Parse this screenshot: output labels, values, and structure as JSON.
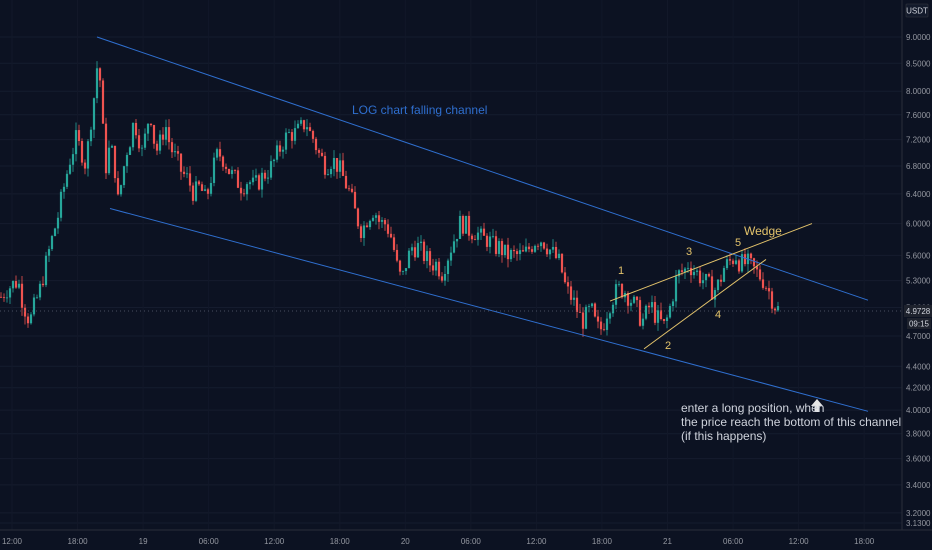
{
  "currency": "USDT",
  "price_label": "4.9728",
  "countdown_label": "09:15",
  "colors": {
    "background": "#0c1222",
    "up": "#26a69a",
    "down": "#ef5350",
    "channel": "#2f6fcf",
    "wedge": "#e3c36b",
    "axis_text": "#9598a1",
    "annotation": "#cfd3dc"
  },
  "annotations": {
    "channel_title": "LOG chart falling channel",
    "wedge_title": "Wedge",
    "note_lines": [
      "enter a long position, when",
      "the price reach the bottom of this channel",
      "(if this happens)"
    ]
  },
  "chart_data": {
    "type": "candlestick",
    "y_scale": "log",
    "y_ticks": [
      "9.0000",
      "8.5000",
      "8.0000",
      "7.6000",
      "7.2000",
      "6.8000",
      "6.4000",
      "6.0000",
      "5.6000",
      "5.3000",
      "5.0000",
      "4.7000",
      "4.4000",
      "4.2000",
      "4.0000",
      "3.8000",
      "3.6000",
      "3.4000",
      "3.2000",
      "3.1300"
    ],
    "x_ticks": [
      "12:00",
      "18:00",
      "19",
      "06:00",
      "12:00",
      "18:00",
      "20",
      "06:00",
      "12:00",
      "18:00",
      "21",
      "06:00",
      "12:00",
      "18:00"
    ],
    "ylim": [
      3.13,
      9.4
    ],
    "price_path": [
      [
        0,
        5.1
      ],
      [
        6,
        5.2
      ],
      [
        12,
        5.25
      ],
      [
        18,
        5.3
      ],
      [
        22,
        5.1
      ],
      [
        26,
        4.95
      ],
      [
        30,
        4.85
      ],
      [
        34,
        5.0
      ],
      [
        40,
        5.2
      ],
      [
        46,
        5.5
      ],
      [
        52,
        5.8
      ],
      [
        58,
        6.1
      ],
      [
        64,
        6.5
      ],
      [
        70,
        6.9
      ],
      [
        76,
        7.2
      ],
      [
        82,
        7.0
      ],
      [
        86,
        6.8
      ],
      [
        90,
        7.4
      ],
      [
        94,
        7.9
      ],
      [
        98,
        8.6
      ],
      [
        100,
        8.2
      ],
      [
        102,
        7.5
      ],
      [
        106,
        6.8
      ],
      [
        110,
        7.1
      ],
      [
        114,
        6.9
      ],
      [
        118,
        6.3
      ],
      [
        122,
        6.6
      ],
      [
        126,
        7.0
      ],
      [
        130,
        7.2
      ],
      [
        134,
        7.5
      ],
      [
        138,
        7.3
      ],
      [
        142,
        7.0
      ],
      [
        146,
        7.3
      ],
      [
        150,
        7.7
      ],
      [
        154,
        7.2
      ],
      [
        158,
        7.0
      ],
      [
        162,
        7.3
      ],
      [
        166,
        7.4
      ],
      [
        170,
        7.1
      ],
      [
        176,
        6.9
      ],
      [
        182,
        6.7
      ],
      [
        188,
        6.6
      ],
      [
        194,
        6.4
      ],
      [
        200,
        6.5
      ],
      [
        206,
        6.3
      ],
      [
        212,
        6.7
      ],
      [
        218,
        7.0
      ],
      [
        224,
        6.9
      ],
      [
        230,
        6.7
      ],
      [
        236,
        6.6
      ],
      [
        242,
        6.5
      ],
      [
        248,
        6.6
      ],
      [
        254,
        6.5
      ],
      [
        260,
        6.6
      ],
      [
        266,
        6.7
      ],
      [
        272,
        6.8
      ],
      [
        278,
        7.0
      ],
      [
        284,
        7.2
      ],
      [
        290,
        7.3
      ],
      [
        296,
        7.3
      ],
      [
        302,
        7.4
      ],
      [
        306,
        7.5
      ],
      [
        310,
        7.3
      ],
      [
        314,
        7.2
      ],
      [
        318,
        7.0
      ],
      [
        322,
        6.9
      ],
      [
        326,
        6.8
      ],
      [
        332,
        6.9
      ],
      [
        338,
        6.8
      ],
      [
        344,
        6.6
      ],
      [
        350,
        6.4
      ],
      [
        356,
        6.1
      ],
      [
        362,
        5.9
      ],
      [
        368,
        6.1
      ],
      [
        374,
        6.2
      ],
      [
        380,
        6.0
      ],
      [
        386,
        6.0
      ],
      [
        392,
        5.8
      ],
      [
        398,
        5.4
      ],
      [
        402,
        5.3
      ],
      [
        406,
        5.5
      ],
      [
        412,
        5.7
      ],
      [
        418,
        5.7
      ],
      [
        424,
        5.6
      ],
      [
        430,
        5.5
      ],
      [
        436,
        5.5
      ],
      [
        442,
        5.4
      ],
      [
        448,
        5.6
      ],
      [
        454,
        5.8
      ],
      [
        460,
        6.0
      ],
      [
        464,
        6.0
      ],
      [
        470,
        5.9
      ],
      [
        476,
        5.9
      ],
      [
        482,
        5.8
      ],
      [
        488,
        5.8
      ],
      [
        494,
        5.7
      ],
      [
        500,
        5.7
      ],
      [
        506,
        5.6
      ],
      [
        512,
        5.6
      ],
      [
        518,
        5.6
      ],
      [
        524,
        5.6
      ],
      [
        530,
        5.7
      ],
      [
        536,
        5.8
      ],
      [
        542,
        5.8
      ],
      [
        548,
        5.7
      ],
      [
        554,
        5.6
      ],
      [
        560,
        5.5
      ],
      [
        566,
        5.2
      ],
      [
        572,
        5.1
      ],
      [
        576,
        5.0
      ],
      [
        580,
        4.9
      ],
      [
        584,
        4.85
      ],
      [
        588,
        4.95
      ],
      [
        592,
        4.95
      ],
      [
        596,
        4.8
      ],
      [
        600,
        4.75
      ],
      [
        604,
        4.85
      ],
      [
        608,
        5.0
      ],
      [
        612,
        5.1
      ],
      [
        618,
        5.2
      ],
      [
        624,
        5.2
      ],
      [
        630,
        5.1
      ],
      [
        636,
        5.0
      ],
      [
        640,
        4.9
      ],
      [
        644,
        4.85
      ],
      [
        648,
        5.0
      ],
      [
        652,
        5.0
      ],
      [
        656,
        4.9
      ],
      [
        660,
        4.85
      ],
      [
        664,
        4.8
      ],
      [
        668,
        4.9
      ],
      [
        672,
        5.1
      ],
      [
        676,
        5.3
      ],
      [
        680,
        5.4
      ],
      [
        684,
        5.4
      ],
      [
        688,
        5.5
      ],
      [
        692,
        5.45
      ],
      [
        696,
        5.4
      ],
      [
        700,
        5.35
      ],
      [
        704,
        5.3
      ],
      [
        708,
        5.25
      ],
      [
        712,
        5.2
      ],
      [
        716,
        5.2
      ],
      [
        720,
        5.3
      ],
      [
        724,
        5.45
      ],
      [
        728,
        5.5
      ],
      [
        732,
        5.55
      ],
      [
        736,
        5.6
      ],
      [
        740,
        5.5
      ],
      [
        744,
        5.5
      ],
      [
        748,
        5.5
      ],
      [
        752,
        5.45
      ],
      [
        756,
        5.4
      ],
      [
        760,
        5.35
      ],
      [
        764,
        5.3
      ],
      [
        768,
        5.2
      ],
      [
        772,
        5.1
      ],
      [
        776,
        5.0
      ],
      [
        778,
        4.98
      ]
    ],
    "channel_upper": [
      [
        97,
        9.0
      ],
      [
        868,
        5.08
      ]
    ],
    "channel_lower": [
      [
        110,
        6.2
      ],
      [
        868,
        3.99
      ]
    ],
    "wedge_lines": [
      [
        [
          610,
          5.07
        ],
        [
          812,
          6.0
        ]
      ],
      [
        [
          644,
          4.57
        ],
        [
          766,
          5.55
        ]
      ]
    ],
    "wave_labels": [
      "1",
      "2",
      "3",
      "4",
      "5"
    ],
    "last_price": 4.9728
  }
}
